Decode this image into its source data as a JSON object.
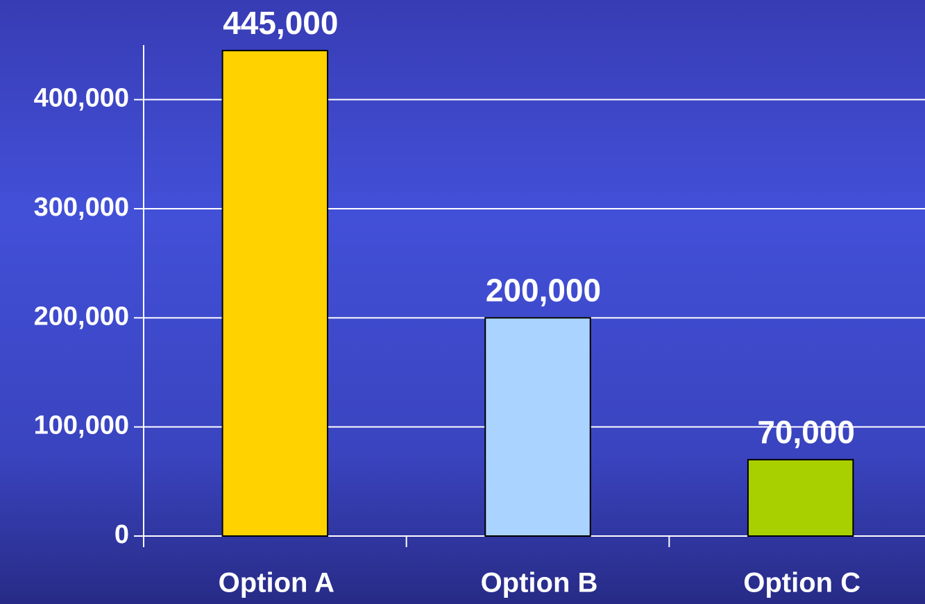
{
  "chart_data": {
    "type": "bar",
    "categories": [
      "Option A",
      "Option B",
      "Option C"
    ],
    "values": [
      445000,
      200000,
      70000
    ],
    "value_labels": [
      "445,000",
      "200,000",
      "70,000"
    ],
    "colors": [
      "#ffd200",
      "#aad4ff",
      "#a8d000"
    ],
    "ylim": [
      0,
      450000
    ],
    "yticks": [
      0,
      {
        "value": 100000,
        "label": "100,000"
      },
      {
        "value": 200000,
        "label": "200,000"
      },
      {
        "value": 300000,
        "label": "300,000"
      },
      {
        "value": 400000,
        "label": "400,000"
      }
    ],
    "grid": true
  }
}
